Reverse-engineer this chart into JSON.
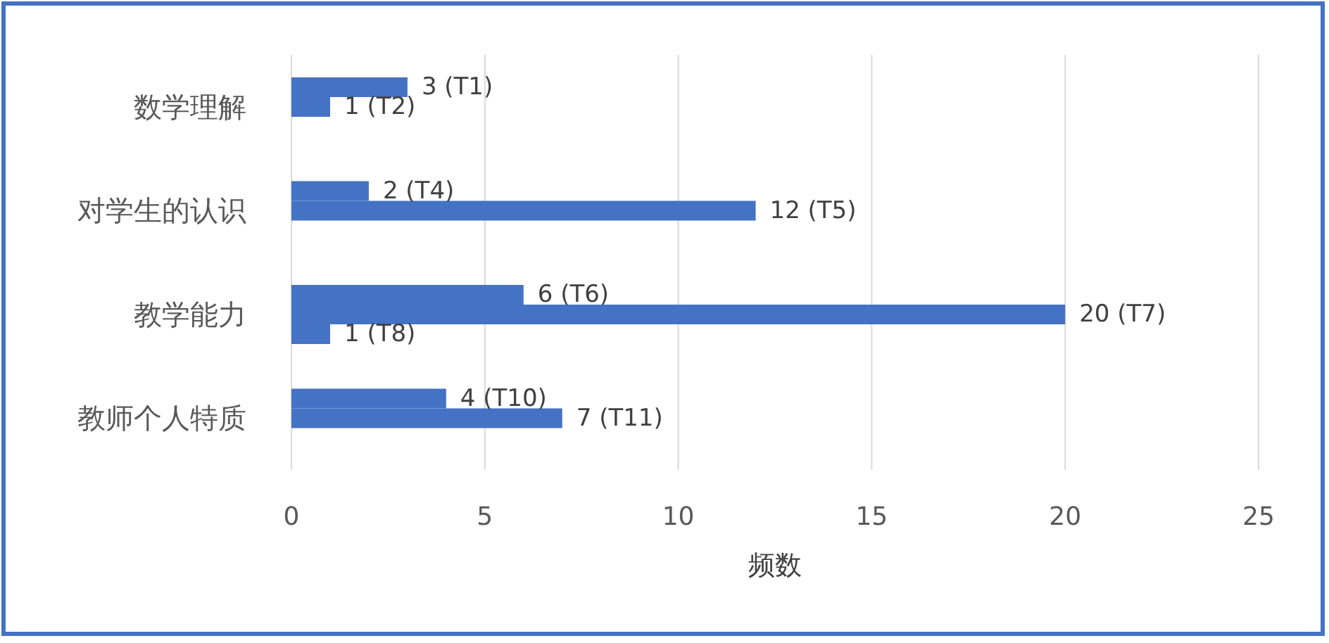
{
  "chart_data": {
    "type": "bar",
    "orientation": "horizontal",
    "xlabel": "频数",
    "categories": [
      "数学理解",
      "对学生的认识",
      "教学能力",
      "教师个人特质"
    ],
    "series": [
      {
        "color": "#4472c4",
        "values": [
          3,
          2,
          6,
          4
        ],
        "value_labels": [
          "3 (T1)",
          "2 (T4)",
          "6 (T6)",
          "4 (T10)"
        ]
      },
      {
        "color": "#4472c4",
        "values": [
          1,
          12,
          20,
          7
        ],
        "value_labels": [
          "1 (T2)",
          "12 (T5)",
          "20 (T7)",
          "7 (T11)"
        ]
      },
      {
        "color": "#4472c4",
        "values": [
          null,
          null,
          1,
          null
        ],
        "value_labels": [
          null,
          null,
          "1 (T8)",
          null
        ]
      }
    ],
    "xlim": [
      0,
      25
    ],
    "xticks": [
      0,
      5,
      10,
      15,
      20,
      25
    ],
    "grid": "x"
  }
}
